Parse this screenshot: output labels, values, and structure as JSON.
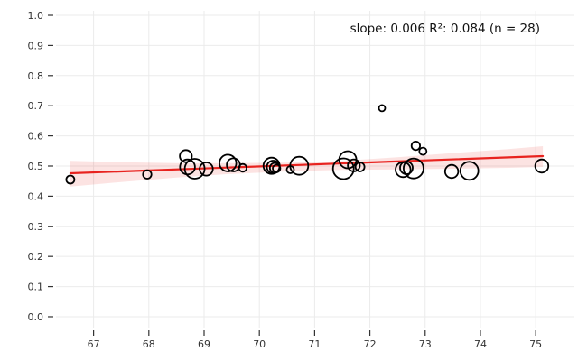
{
  "annotation": {
    "text": "slope: 0.006  R²: 0.084  (n = 28)"
  },
  "chart_data": {
    "type": "scatter",
    "title": "",
    "xlabel": "",
    "ylabel": "",
    "grid": true,
    "legend": "none",
    "xlim": [
      66.32,
      75.7
    ],
    "ylim": [
      -0.036,
      1.015
    ],
    "x_ticks": [
      67,
      68,
      69,
      70,
      71,
      72,
      73,
      74,
      75
    ],
    "y_ticks": [
      0.0,
      0.1,
      0.2,
      0.3,
      0.4,
      0.5,
      0.6,
      0.7,
      0.8,
      0.9,
      1.0
    ],
    "stats": {
      "slope": 0.006,
      "r_squared": 0.084,
      "n": 28
    },
    "points": [
      {
        "x": 66.58,
        "y": 0.455,
        "r": 4.5
      },
      {
        "x": 67.97,
        "y": 0.472,
        "r": 4.7
      },
      {
        "x": 68.67,
        "y": 0.533,
        "r": 6.7
      },
      {
        "x": 68.7,
        "y": 0.497,
        "r": 8.3
      },
      {
        "x": 68.83,
        "y": 0.491,
        "r": 11.0
      },
      {
        "x": 69.04,
        "y": 0.49,
        "r": 7.3
      },
      {
        "x": 69.43,
        "y": 0.51,
        "r": 9.3
      },
      {
        "x": 69.53,
        "y": 0.504,
        "r": 7.3
      },
      {
        "x": 69.7,
        "y": 0.494,
        "r": 4.3
      },
      {
        "x": 70.22,
        "y": 0.501,
        "r": 9.0
      },
      {
        "x": 70.25,
        "y": 0.497,
        "r": 7.0
      },
      {
        "x": 70.28,
        "y": 0.494,
        "r": 5.5
      },
      {
        "x": 70.31,
        "y": 0.492,
        "r": 4.2
      },
      {
        "x": 70.56,
        "y": 0.488,
        "r": 4.0
      },
      {
        "x": 70.72,
        "y": 0.501,
        "r": 10.0
      },
      {
        "x": 71.52,
        "y": 0.491,
        "r": 11.5
      },
      {
        "x": 71.6,
        "y": 0.521,
        "r": 9.5
      },
      {
        "x": 71.71,
        "y": 0.502,
        "r": 6.7
      },
      {
        "x": 71.82,
        "y": 0.497,
        "r": 5.0
      },
      {
        "x": 72.22,
        "y": 0.692,
        "r": 3.5
      },
      {
        "x": 72.6,
        "y": 0.488,
        "r": 8.3
      },
      {
        "x": 72.66,
        "y": 0.494,
        "r": 7.0
      },
      {
        "x": 72.79,
        "y": 0.492,
        "r": 11.0
      },
      {
        "x": 72.83,
        "y": 0.567,
        "r": 4.7
      },
      {
        "x": 72.96,
        "y": 0.549,
        "r": 4.0
      },
      {
        "x": 73.48,
        "y": 0.482,
        "r": 7.3
      },
      {
        "x": 73.8,
        "y": 0.484,
        "r": 10.0
      },
      {
        "x": 75.11,
        "y": 0.5,
        "r": 7.3
      }
    ],
    "regression_line": {
      "x1": 66.58,
      "y1": 0.476,
      "x2": 75.13,
      "y2": 0.533
    },
    "confidence_band": [
      {
        "x": 66.58,
        "lo": 0.432,
        "hi": 0.517
      },
      {
        "x": 67.5,
        "lo": 0.447,
        "hi": 0.513
      },
      {
        "x": 68.5,
        "lo": 0.462,
        "hi": 0.51
      },
      {
        "x": 69.5,
        "lo": 0.474,
        "hi": 0.51
      },
      {
        "x": 70.5,
        "lo": 0.482,
        "hi": 0.511
      },
      {
        "x": 71.0,
        "lo": 0.485,
        "hi": 0.513
      },
      {
        "x": 71.5,
        "lo": 0.487,
        "hi": 0.517
      },
      {
        "x": 72.5,
        "lo": 0.489,
        "hi": 0.529
      },
      {
        "x": 73.5,
        "lo": 0.491,
        "hi": 0.543
      },
      {
        "x": 74.5,
        "lo": 0.494,
        "hi": 0.556
      },
      {
        "x": 75.13,
        "lo": 0.497,
        "hi": 0.566
      }
    ],
    "colors": {
      "point_stroke": "#000000",
      "regression_line": "#e8231f",
      "confidence_band": "rgba(232,35,31,0.13)",
      "grid": "#ebebeb",
      "tick_mark": "#333333",
      "tick_text": "#333333",
      "annotation_text": "#111111",
      "background": "#ffffff"
    }
  }
}
